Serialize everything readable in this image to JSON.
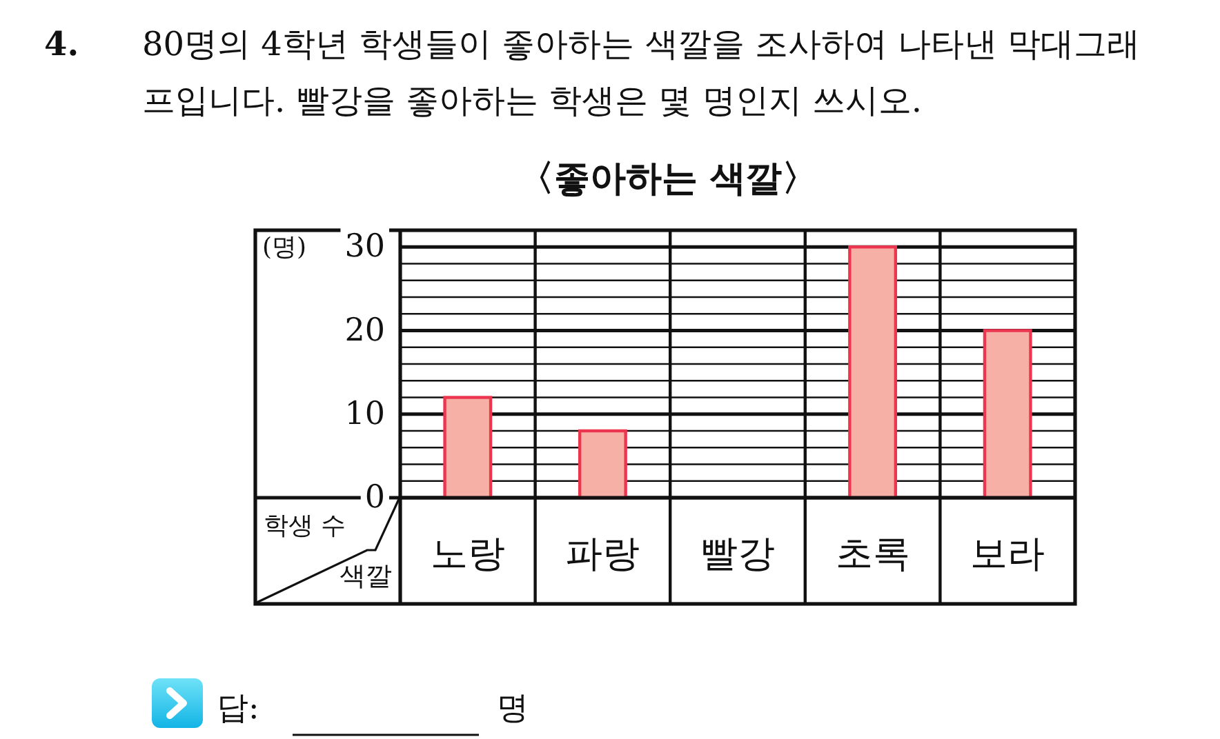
{
  "chart_data": {
    "type": "bar",
    "title": "〈좋아하는 색깔〉",
    "xlabel": "색깔",
    "ylabel": "학생 수",
    "categories": [
      "노랑",
      "파랑",
      "빨강",
      "초록",
      "보라"
    ],
    "values": [
      12,
      8,
      null,
      30,
      20
    ],
    "color": "#f6b0a5",
    "ylim": [
      0,
      32
    ],
    "yticks": [
      0,
      {
        "value": 2,
        "label": null
      },
      {
        "value": 4,
        "label": null
      },
      {
        "value": 6,
        "label": null
      },
      {
        "value": 8,
        "label": null
      },
      10,
      {
        "value": 12,
        "label": null
      },
      {
        "value": 14,
        "label": null
      },
      {
        "value": 16,
        "label": null
      },
      {
        "value": 18,
        "label": null
      },
      20,
      {
        "value": 22,
        "label": null
      },
      {
        "value": 24,
        "label": null
      },
      {
        "value": 26,
        "label": null
      },
      {
        "value": 28,
        "label": null
      },
      30
    ],
    "grid": true,
    "annotations": [
      "4.",
      "80명의 4학년 학생들이 좋아하는 색깔을 조사하여 나타낸 막대그래프입니다. 빨강을 좋아하는 학생은 몇 명인지 쓰시오.",
      "(명)",
      "답:",
      "명"
    ]
  }
}
